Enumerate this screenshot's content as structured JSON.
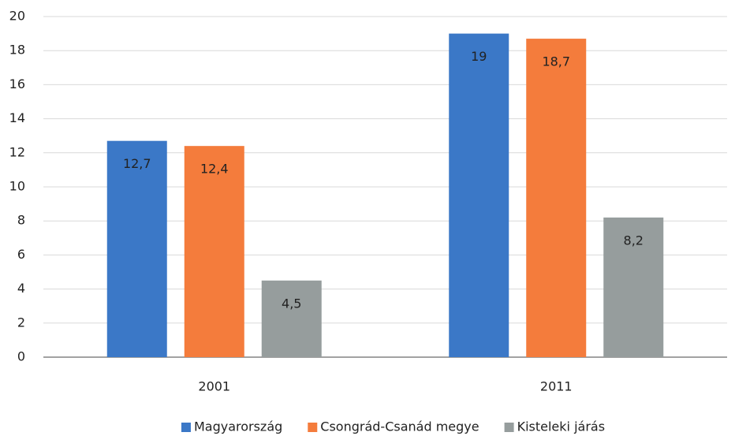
{
  "chart_data": {
    "type": "bar",
    "categories": [
      "2001",
      "2011"
    ],
    "series": [
      {
        "name": "Magyarország",
        "color": "#3b78c7",
        "values": [
          12.7,
          19
        ],
        "value_labels": [
          "12,7",
          "19"
        ]
      },
      {
        "name": "Csongrád-Csanád megye",
        "color": "#f47c3c",
        "values": [
          12.4,
          18.7
        ],
        "value_labels": [
          "12,4",
          "18,7"
        ]
      },
      {
        "name": "Kisteleki járás",
        "color": "#969d9d",
        "values": [
          4.5,
          8.2
        ],
        "value_labels": [
          "4,5",
          "8,2"
        ]
      }
    ],
    "ylim": [
      0,
      20
    ],
    "yticks": [
      0,
      2,
      4,
      6,
      8,
      10,
      12,
      14,
      16,
      18,
      20
    ],
    "grid": true,
    "legend": "bottom"
  }
}
